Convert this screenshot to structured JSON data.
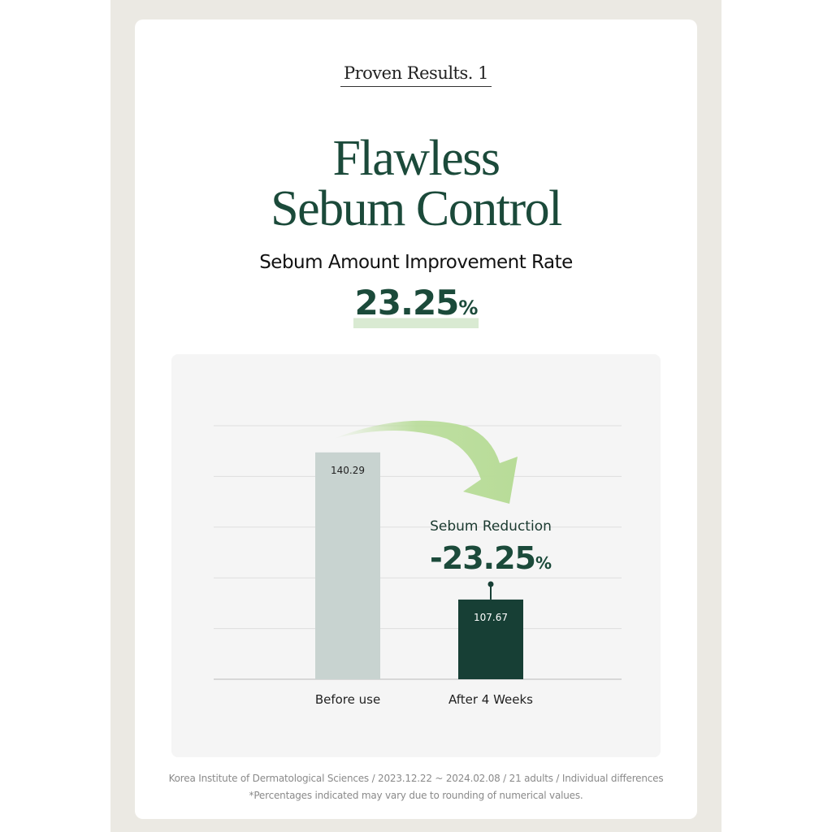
{
  "header": {
    "eyebrow": "Proven Results. 1",
    "title_line1": "Flawless",
    "title_line2": "Sebum Control",
    "subtitle": "Sebum Amount Improvement Rate",
    "rate_value": "23.25",
    "rate_unit": "%"
  },
  "chart_data": {
    "type": "bar",
    "categories": [
      "Before use",
      "After 4 Weeks"
    ],
    "values": [
      140.29,
      107.67
    ],
    "value_labels": [
      "140.29",
      "107.67"
    ],
    "ylim": [
      90,
      146.2
    ],
    "grid": true,
    "colors": [
      "#c8d3d0",
      "#173f35"
    ],
    "annotation": {
      "label": "Sebum Reduction",
      "value": "-23.25",
      "unit": "%"
    },
    "arrow_color": "#b8dc98"
  },
  "footer": {
    "line1": "Korea Institute of Dermatological Sciences / 2023.12.22 ~ 2024.02.08 / 21 adults / Individual differences",
    "line2": "*Percentages indicated may vary due to rounding of numerical values."
  }
}
